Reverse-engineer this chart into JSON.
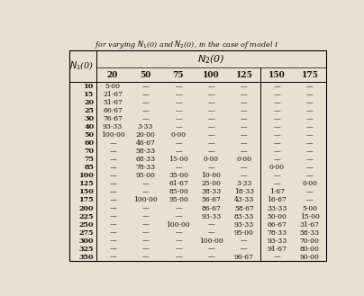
{
  "title_line1": "for varying $N_1$(0) and $N_2$(0), in the case of model I",
  "col_header_label": "$N_2$(0)",
  "row_header_label": "$N_1$(0)",
  "col_headers": [
    "20",
    "50",
    "75",
    "100",
    "125",
    "150",
    "175"
  ],
  "row_headers": [
    "10",
    "15",
    "20",
    "25",
    "30",
    "40",
    "50",
    "60",
    "70",
    "75",
    "85",
    "100",
    "125",
    "150",
    "175",
    "200",
    "225",
    "250",
    "275",
    "300",
    "325",
    "350"
  ],
  "table_data": [
    [
      "5·00",
      "—",
      "—",
      "—",
      "—",
      "—",
      "—"
    ],
    [
      "21·67",
      "—",
      "—",
      "—",
      "—",
      "—",
      "—"
    ],
    [
      "51·67",
      "—",
      "—",
      "—",
      "—",
      "—",
      "—"
    ],
    [
      "66·67",
      "—",
      "—",
      "—",
      "—",
      "—",
      "—"
    ],
    [
      "76·67",
      "—",
      "—",
      "—",
      "—",
      "—",
      "—"
    ],
    [
      "93·33",
      "3·33",
      "—",
      "—",
      "—",
      "—",
      "—"
    ],
    [
      "100·00",
      "20·00",
      "0·00",
      "—",
      "—",
      "—",
      "—"
    ],
    [
      "—",
      "46·67",
      "—",
      "—",
      "—",
      "—",
      "—"
    ],
    [
      "—",
      "58·33",
      "—",
      "—",
      "—",
      "—",
      "—"
    ],
    [
      "—",
      "68·33",
      "15·00",
      "0·00",
      "0·00",
      "—",
      "—"
    ],
    [
      "—",
      "78·33",
      "—",
      "—",
      "—",
      "0·00",
      "—"
    ],
    [
      "—",
      "95·00",
      "35·00",
      "10·00",
      "—",
      "—",
      "—"
    ],
    [
      "—",
      "—",
      "61·67",
      "25·00",
      "3·33",
      "—",
      "0·00"
    ],
    [
      "—",
      "—",
      "85·00",
      "38·33",
      "18·33",
      "1·67",
      "—"
    ],
    [
      "—",
      "100·00",
      "95·00",
      "56·67",
      "43·33",
      "16·67",
      "—"
    ],
    [
      "—",
      "—",
      "—",
      "86·67",
      "58·67",
      "33·33",
      "5·00"
    ],
    [
      "—",
      "—",
      "—",
      "93·33",
      "83·33",
      "50·00",
      "15·00"
    ],
    [
      "—",
      "—",
      "100·00",
      "—",
      "93·33",
      "66·67",
      "31·67"
    ],
    [
      "—",
      "—",
      "—",
      "—",
      "95·00",
      "78·33",
      "58·33"
    ],
    [
      "—",
      "—",
      "—",
      "100·00",
      "—",
      "93·33",
      "70·00"
    ],
    [
      "—",
      "—",
      "—",
      "—",
      "—",
      "91·67",
      "80·00"
    ],
    [
      "—",
      "—",
      "—",
      "—",
      "96·67",
      "—",
      "90·00"
    ]
  ],
  "bg_color": "#e8e0d0",
  "text_color": "#111111",
  "bold_col_line_after": 4
}
